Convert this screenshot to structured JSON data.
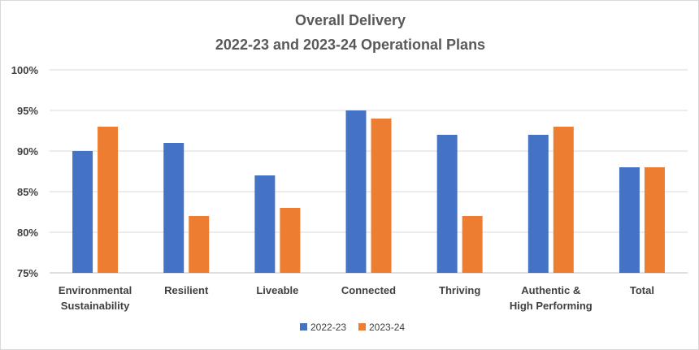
{
  "chart_data": {
    "type": "bar",
    "title": "Overall Delivery",
    "subtitle": "2022-23 and 2023-24 Operational Plans",
    "categories": [
      [
        "Environmental",
        "Sustainability"
      ],
      [
        "Resilient"
      ],
      [
        "Liveable"
      ],
      [
        "Connected"
      ],
      [
        "Thriving"
      ],
      [
        "Authentic &",
        "High Performing"
      ],
      [
        "Total"
      ]
    ],
    "series": [
      {
        "name": "2022-23",
        "color": "#4472C4",
        "values": [
          90,
          91,
          87,
          95,
          92,
          92,
          88
        ]
      },
      {
        "name": "2023-24",
        "color": "#ED7D31",
        "values": [
          93,
          82,
          83,
          94,
          82,
          93,
          88
        ]
      }
    ],
    "ylim": [
      75,
      100
    ],
    "yticks": [
      "75%",
      "80%",
      "85%",
      "90%",
      "95%",
      "100%"
    ],
    "ytick_values": [
      75,
      80,
      85,
      90,
      95,
      100
    ],
    "grid": true,
    "legend": "bottom"
  }
}
